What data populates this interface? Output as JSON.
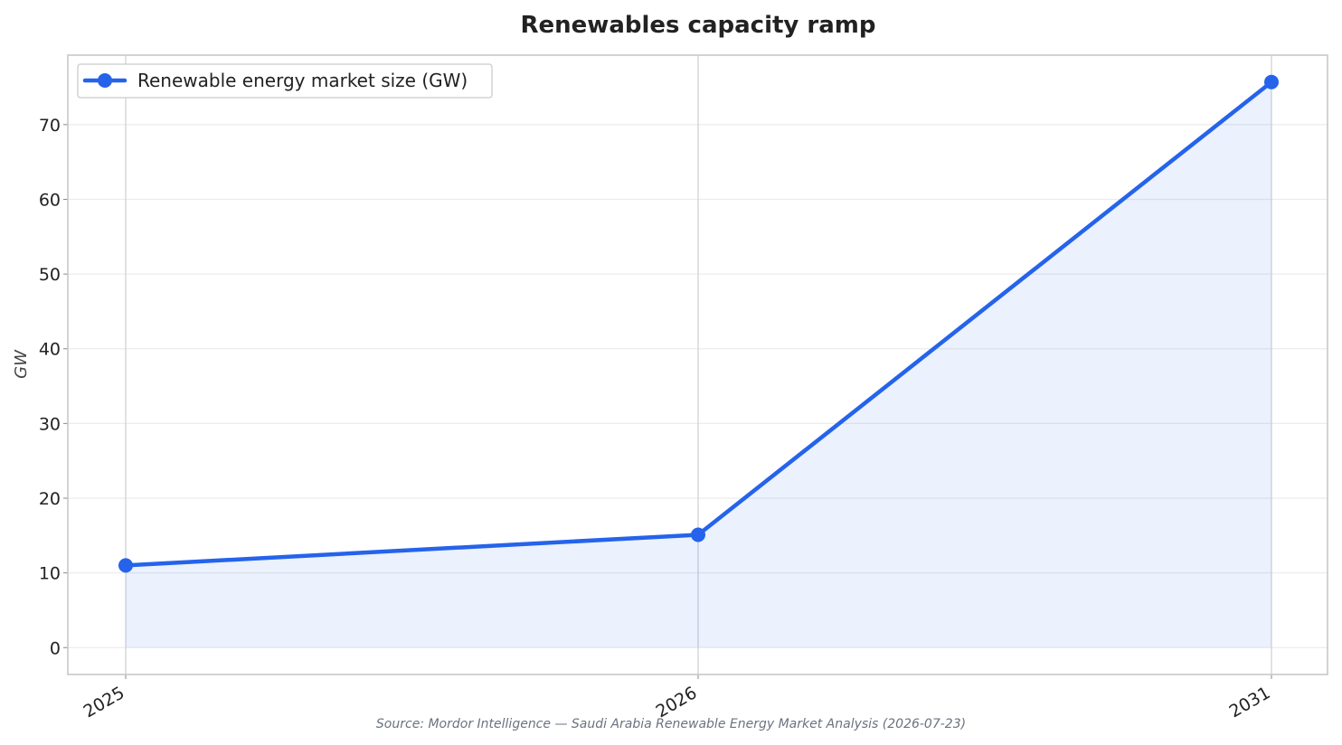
{
  "chart_data": {
    "type": "line",
    "title": "Renewables capacity ramp",
    "xlabel": "",
    "ylabel": "GW",
    "x": [
      "2025",
      "2026",
      "2031"
    ],
    "series": [
      {
        "name": "Renewable energy market size (GW)",
        "values": [
          11,
          15.1,
          75.7
        ],
        "color": "#2563eb"
      }
    ],
    "ylim": [
      -3.6,
      79.3
    ],
    "yticks": [
      0,
      10,
      20,
      30,
      40,
      50,
      60,
      70
    ],
    "grid": true,
    "area_fill": true,
    "legend_position": "top-left",
    "source": "Source: Mordor Intelligence — Saudi Arabia Renewable Energy Market Analysis (2026-07-23)"
  }
}
